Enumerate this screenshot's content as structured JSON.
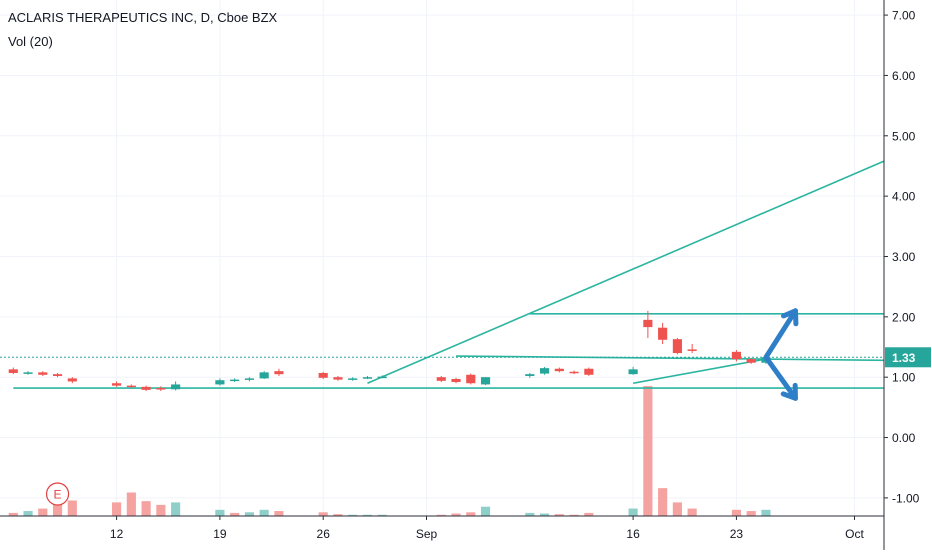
{
  "header": {
    "symbol_title": "ACLARIS THERAPEUTICS INC, D, Cboe BZX",
    "volume_label": "Vol (20)"
  },
  "colors": {
    "up": "#26a69a",
    "down": "#ef5350",
    "up_volume": "#8fcfc9",
    "down_volume": "#f5a3a1",
    "trendline": "#2bb5a0",
    "arrow": "#2f7fc8",
    "price_tag": "#26a69a",
    "earnings_marker": "#e04040"
  },
  "chart_data": {
    "type": "candlestick",
    "title": "ACLARIS THERAPEUTICS INC, D, Cboe BZX",
    "price_axis": {
      "ticks": [
        "7.00",
        "6.00",
        "5.00",
        "4.00",
        "3.00",
        "2.00",
        "1.00",
        "0.00",
        "-1.00"
      ],
      "tick_values": [
        7,
        6,
        5,
        4,
        3,
        2,
        1,
        0,
        -1
      ],
      "ylim": [
        -1.3,
        7.25
      ],
      "current_price": 1.33,
      "current_price_label": "1.33"
    },
    "time_axis": {
      "labels": [
        {
          "text": "12",
          "date": "2019-08-12"
        },
        {
          "text": "19",
          "date": "2019-08-19"
        },
        {
          "text": "26",
          "date": "2019-08-26"
        },
        {
          "text": "Sep",
          "date": "2019-09-02"
        },
        {
          "text": "16",
          "date": "2019-09-16"
        },
        {
          "text": "23",
          "date": "2019-09-23"
        },
        {
          "text": "Oct",
          "date": "2019-10-01"
        }
      ],
      "range": [
        "2019-08-05",
        "2019-10-03"
      ]
    },
    "candles": [
      {
        "date": "2019-08-05",
        "open": 1.13,
        "high": 1.16,
        "low": 1.05,
        "close": 1.07
      },
      {
        "date": "2019-08-06",
        "open": 1.07,
        "high": 1.1,
        "low": 1.04,
        "close": 1.08
      },
      {
        "date": "2019-08-07",
        "open": 1.08,
        "high": 1.1,
        "low": 1.02,
        "close": 1.04
      },
      {
        "date": "2019-08-08",
        "open": 1.05,
        "high": 1.07,
        "low": 1.0,
        "close": 1.02
      },
      {
        "date": "2019-08-09",
        "open": 0.98,
        "high": 1.0,
        "low": 0.9,
        "close": 0.93
      },
      {
        "date": "2019-08-12",
        "open": 0.9,
        "high": 0.93,
        "low": 0.84,
        "close": 0.86
      },
      {
        "date": "2019-08-13",
        "open": 0.86,
        "high": 0.88,
        "low": 0.82,
        "close": 0.84
      },
      {
        "date": "2019-08-14",
        "open": 0.84,
        "high": 0.86,
        "low": 0.77,
        "close": 0.79
      },
      {
        "date": "2019-08-15",
        "open": 0.82,
        "high": 0.85,
        "low": 0.77,
        "close": 0.8
      },
      {
        "date": "2019-08-16",
        "open": 0.8,
        "high": 0.93,
        "low": 0.78,
        "close": 0.88
      },
      {
        "date": "2019-08-19",
        "open": 0.88,
        "high": 0.98,
        "low": 0.86,
        "close": 0.95
      },
      {
        "date": "2019-08-20",
        "open": 0.94,
        "high": 0.98,
        "low": 0.92,
        "close": 0.96
      },
      {
        "date": "2019-08-21",
        "open": 0.96,
        "high": 1.0,
        "low": 0.93,
        "close": 0.98
      },
      {
        "date": "2019-08-22",
        "open": 0.98,
        "high": 1.1,
        "low": 0.97,
        "close": 1.08
      },
      {
        "date": "2019-08-23",
        "open": 1.1,
        "high": 1.14,
        "low": 1.02,
        "close": 1.05
      },
      {
        "date": "2019-08-26",
        "open": 1.07,
        "high": 1.09,
        "low": 0.97,
        "close": 0.99
      },
      {
        "date": "2019-08-27",
        "open": 1.0,
        "high": 1.02,
        "low": 0.94,
        "close": 0.96
      },
      {
        "date": "2019-08-28",
        "open": 0.96,
        "high": 1.0,
        "low": 0.94,
        "close": 0.98
      },
      {
        "date": "2019-08-29",
        "open": 0.99,
        "high": 1.02,
        "low": 0.97,
        "close": 1.0
      },
      {
        "date": "2019-08-30",
        "open": 1.0,
        "high": 1.03,
        "low": 0.98,
        "close": 1.01
      },
      {
        "date": "2019-09-03",
        "open": 1.0,
        "high": 1.02,
        "low": 0.92,
        "close": 0.94
      },
      {
        "date": "2019-09-04",
        "open": 0.97,
        "high": 0.99,
        "low": 0.9,
        "close": 0.92
      },
      {
        "date": "2019-09-05",
        "open": 1.04,
        "high": 1.06,
        "low": 0.88,
        "close": 0.9
      },
      {
        "date": "2019-09-06",
        "open": 0.88,
        "high": 1.0,
        "low": 0.87,
        "close": 1.0
      },
      {
        "date": "2019-09-09",
        "open": 1.02,
        "high": 1.07,
        "low": 0.99,
        "close": 1.05
      },
      {
        "date": "2019-09-10",
        "open": 1.06,
        "high": 1.17,
        "low": 1.04,
        "close": 1.15
      },
      {
        "date": "2019-09-11",
        "open": 1.14,
        "high": 1.16,
        "low": 1.08,
        "close": 1.1
      },
      {
        "date": "2019-09-12",
        "open": 1.09,
        "high": 1.11,
        "low": 1.05,
        "close": 1.07
      },
      {
        "date": "2019-09-13",
        "open": 1.14,
        "high": 1.16,
        "low": 1.02,
        "close": 1.04
      },
      {
        "date": "2019-09-16",
        "open": 1.05,
        "high": 1.17,
        "low": 1.04,
        "close": 1.13
      },
      {
        "date": "2019-09-17",
        "open": 1.95,
        "high": 2.1,
        "low": 1.65,
        "close": 1.83
      },
      {
        "date": "2019-09-18",
        "open": 1.82,
        "high": 1.9,
        "low": 1.55,
        "close": 1.62
      },
      {
        "date": "2019-09-19",
        "open": 1.63,
        "high": 1.65,
        "low": 1.38,
        "close": 1.4
      },
      {
        "date": "2019-09-20",
        "open": 1.46,
        "high": 1.55,
        "low": 1.4,
        "close": 1.44
      },
      {
        "date": "2019-09-23",
        "open": 1.42,
        "high": 1.45,
        "low": 1.26,
        "close": 1.3
      },
      {
        "date": "2019-09-24",
        "open": 1.3,
        "high": 1.32,
        "low": 1.22,
        "close": 1.24
      },
      {
        "date": "2019-09-25",
        "open": 1.24,
        "high": 1.4,
        "low": 1.22,
        "close": 1.33
      }
    ],
    "volume": [
      {
        "date": "2019-08-05",
        "value": 0.05,
        "up": false
      },
      {
        "date": "2019-08-06",
        "value": 0.08,
        "up": true
      },
      {
        "date": "2019-08-07",
        "value": 0.12,
        "up": false
      },
      {
        "date": "2019-08-08",
        "value": 0.18,
        "up": false
      },
      {
        "date": "2019-08-09",
        "value": 0.25,
        "up": false
      },
      {
        "date": "2019-08-12",
        "value": 0.22,
        "up": false
      },
      {
        "date": "2019-08-13",
        "value": 0.38,
        "up": false
      },
      {
        "date": "2019-08-14",
        "value": 0.24,
        "up": false
      },
      {
        "date": "2019-08-15",
        "value": 0.18,
        "up": false
      },
      {
        "date": "2019-08-16",
        "value": 0.22,
        "up": true
      },
      {
        "date": "2019-08-19",
        "value": 0.1,
        "up": true
      },
      {
        "date": "2019-08-20",
        "value": 0.05,
        "up": false
      },
      {
        "date": "2019-08-21",
        "value": 0.06,
        "up": true
      },
      {
        "date": "2019-08-22",
        "value": 0.1,
        "up": true
      },
      {
        "date": "2019-08-23",
        "value": 0.08,
        "up": false
      },
      {
        "date": "2019-08-26",
        "value": 0.06,
        "up": false
      },
      {
        "date": "2019-08-27",
        "value": 0.03,
        "up": false
      },
      {
        "date": "2019-08-28",
        "value": 0.02,
        "up": true
      },
      {
        "date": "2019-08-29",
        "value": 0.02,
        "up": true
      },
      {
        "date": "2019-08-30",
        "value": 0.02,
        "up": true
      },
      {
        "date": "2019-09-03",
        "value": 0.02,
        "up": false
      },
      {
        "date": "2019-09-04",
        "value": 0.04,
        "up": false
      },
      {
        "date": "2019-09-05",
        "value": 0.06,
        "up": false
      },
      {
        "date": "2019-09-06",
        "value": 0.15,
        "up": true
      },
      {
        "date": "2019-09-09",
        "value": 0.05,
        "up": true
      },
      {
        "date": "2019-09-10",
        "value": 0.04,
        "up": true
      },
      {
        "date": "2019-09-11",
        "value": 0.03,
        "up": false
      },
      {
        "date": "2019-09-12",
        "value": 0.02,
        "up": false
      },
      {
        "date": "2019-09-13",
        "value": 0.05,
        "up": false
      },
      {
        "date": "2019-09-16",
        "value": 0.12,
        "up": true
      },
      {
        "date": "2019-09-17",
        "value": 2.1,
        "up": false
      },
      {
        "date": "2019-09-18",
        "value": 0.45,
        "up": false
      },
      {
        "date": "2019-09-19",
        "value": 0.22,
        "up": false
      },
      {
        "date": "2019-09-20",
        "value": 0.12,
        "up": false
      },
      {
        "date": "2019-09-23",
        "value": 0.1,
        "up": false
      },
      {
        "date": "2019-09-24",
        "value": 0.08,
        "up": false
      },
      {
        "date": "2019-09-25",
        "value": 0.1,
        "up": true
      }
    ],
    "drawings": {
      "trendlines": [
        {
          "from": {
            "date": "2019-08-29",
            "price": 0.9
          },
          "to": {
            "date": "2019-10-03",
            "price": 4.58
          }
        },
        {
          "from": {
            "date": "2019-09-09",
            "price": 2.05
          },
          "to": {
            "date": "2019-10-03",
            "price": 2.05
          }
        },
        {
          "from": {
            "date": "2019-09-04",
            "price": 1.35
          },
          "to": {
            "date": "2019-10-03",
            "price": 1.28
          }
        },
        {
          "from": {
            "date": "2019-09-16",
            "price": 0.9
          },
          "to": {
            "date": "2019-09-25",
            "price": 1.3
          }
        },
        {
          "from": {
            "date": "2019-08-05",
            "price": 0.82
          },
          "to": {
            "date": "2019-10-03",
            "price": 0.82
          }
        }
      ],
      "arrows": [
        {
          "from": {
            "date": "2019-09-25",
            "price": 1.33
          },
          "to": {
            "date": "2019-09-27",
            "price": 2.1
          }
        },
        {
          "from": {
            "date": "2019-09-25",
            "price": 1.33
          },
          "to": {
            "date": "2019-09-27",
            "price": 0.65
          }
        }
      ],
      "earnings_marker": {
        "date": "2019-08-08",
        "label": "E"
      }
    }
  }
}
